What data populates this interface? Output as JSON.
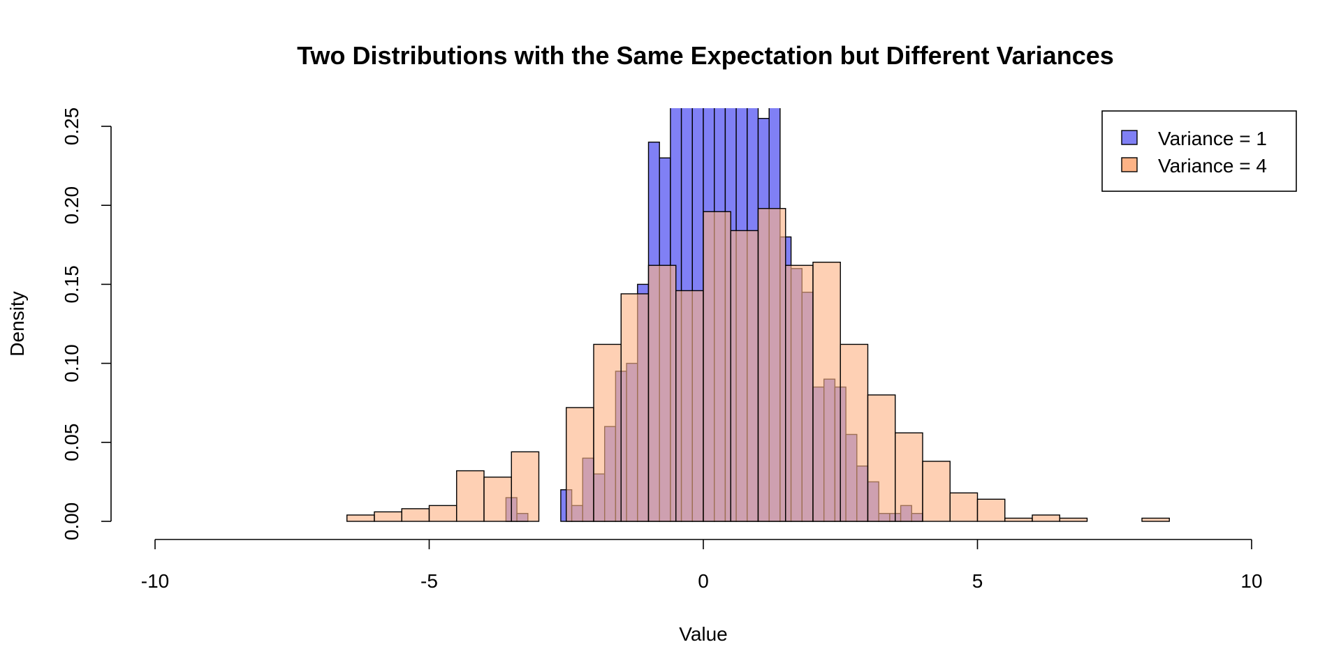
{
  "chart_data": {
    "type": "bar",
    "title": "Two Distributions with the Same Expectation but Different Variances",
    "xlabel": "Value",
    "ylabel": "Density",
    "xlim": [
      -10,
      10
    ],
    "ylim": [
      0,
      0.25
    ],
    "x_ticks": [
      "-10",
      "-5",
      "0",
      "5",
      "10"
    ],
    "y_ticks": [
      "0.00",
      "0.05",
      "0.10",
      "0.15",
      "0.20",
      "0.25"
    ],
    "legend_position": "top-right",
    "colors": {
      "variance_1": "#8080f5",
      "variance_4": "#fdb386",
      "overlap": "#bf6a74"
    },
    "series": [
      {
        "name": "Variance = 1",
        "bin_width": 0.2,
        "bin_edges_start": -3.6,
        "values": [
          0.015,
          0.005,
          0,
          0,
          0,
          0.02,
          0.01,
          0.04,
          0.03,
          0.06,
          0.095,
          0.1,
          0.15,
          0.24,
          0.23,
          0.27,
          0.3,
          0.3,
          0.3,
          0.32,
          0.3,
          0.3,
          0.3,
          0.255,
          0.27,
          0.18,
          0.16,
          0.145,
          0.085,
          0.09,
          0.085,
          0.055,
          0.035,
          0.025,
          0.005,
          0.005,
          0.01,
          0.005
        ]
      },
      {
        "name": "Variance = 4",
        "bin_width": 0.5,
        "bin_edges_start": -6.5,
        "values": [
          0.004,
          0.006,
          0.008,
          0.01,
          0.032,
          0.028,
          0.044,
          0,
          0.072,
          0.112,
          0.144,
          0.162,
          0.146,
          0.196,
          0.184,
          0.198,
          0.162,
          0.164,
          0.112,
          0.08,
          0.056,
          0.038,
          0.018,
          0.014,
          0.002,
          0.004,
          0.002,
          0,
          0,
          0.002
        ]
      }
    ]
  }
}
